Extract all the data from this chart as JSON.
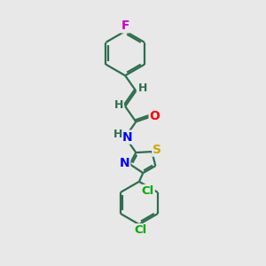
{
  "bg_color": "#e8e8e8",
  "bond_color": "#2d6e4e",
  "bond_width": 1.6,
  "atom_colors": {
    "F": "#cc00cc",
    "O": "#ff0000",
    "N": "#0000ff",
    "S": "#ccaa00",
    "Cl": "#00aa00",
    "H": "#2d6e4e",
    "C": "#2d6e4e"
  },
  "font_size": 10,
  "figsize": [
    3.0,
    3.0
  ],
  "dpi": 100
}
